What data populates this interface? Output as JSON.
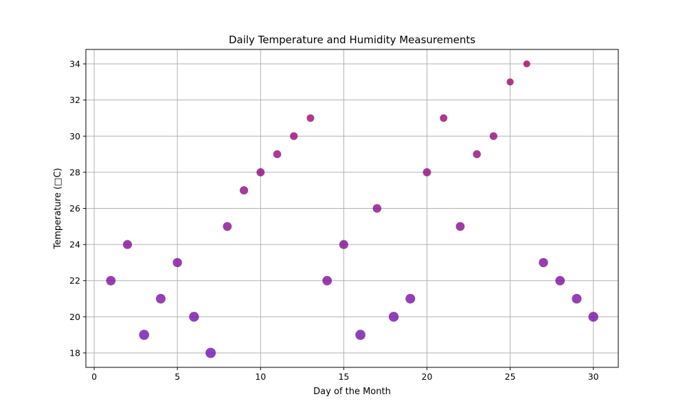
{
  "chart_data": {
    "type": "scatter",
    "title": "Daily Temperature and Humidity Measurements",
    "xlabel": "Day of the Month",
    "ylabel": "Temperature (□C)",
    "xlim": [
      -0.5,
      31.5
    ],
    "ylim": [
      17.2,
      34.8
    ],
    "xticks": [
      0,
      5,
      10,
      15,
      20,
      25,
      30
    ],
    "yticks": [
      18,
      20,
      22,
      24,
      26,
      28,
      30,
      32,
      34
    ],
    "grid": true,
    "legend": "none",
    "marker_color_low": "#6a0dad",
    "marker_color_high": "#a0005a",
    "points": [
      {
        "x": 1,
        "y": 22
      },
      {
        "x": 2,
        "y": 24
      },
      {
        "x": 3,
        "y": 19
      },
      {
        "x": 4,
        "y": 21
      },
      {
        "x": 5,
        "y": 23
      },
      {
        "x": 6,
        "y": 20
      },
      {
        "x": 7,
        "y": 18
      },
      {
        "x": 8,
        "y": 25
      },
      {
        "x": 9,
        "y": 27
      },
      {
        "x": 10,
        "y": 28
      },
      {
        "x": 11,
        "y": 29
      },
      {
        "x": 12,
        "y": 30
      },
      {
        "x": 13,
        "y": 31
      },
      {
        "x": 14,
        "y": 22
      },
      {
        "x": 15,
        "y": 24
      },
      {
        "x": 16,
        "y": 19
      },
      {
        "x": 17,
        "y": 26
      },
      {
        "x": 18,
        "y": 20
      },
      {
        "x": 19,
        "y": 21
      },
      {
        "x": 20,
        "y": 28
      },
      {
        "x": 21,
        "y": 31
      },
      {
        "x": 22,
        "y": 25
      },
      {
        "x": 23,
        "y": 29
      },
      {
        "x": 24,
        "y": 30
      },
      {
        "x": 25,
        "y": 33
      },
      {
        "x": 26,
        "y": 34
      },
      {
        "x": 27,
        "y": 23
      },
      {
        "x": 28,
        "y": 22
      },
      {
        "x": 29,
        "y": 21
      },
      {
        "x": 30,
        "y": 20
      }
    ]
  }
}
